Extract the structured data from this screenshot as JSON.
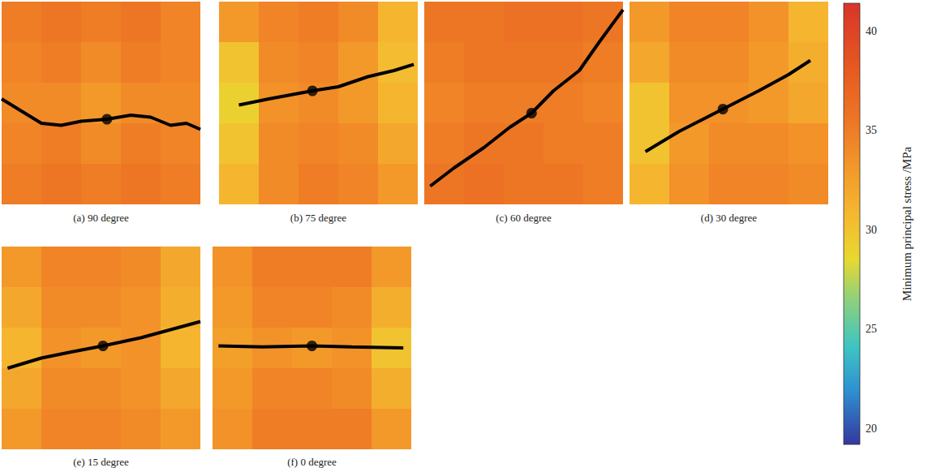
{
  "chart_data": {
    "type": "heatmap",
    "xlim": [
      0,
      10
    ],
    "ylim": [
      0,
      10
    ],
    "tick_labels": false,
    "panels": [
      {
        "title": "(a) 90 degree",
        "field": [
          [
            35,
            35.5,
            35,
            35.5,
            34.5
          ],
          [
            34.5,
            35,
            34,
            35,
            34.5
          ],
          [
            34,
            34,
            33,
            34,
            34
          ],
          [
            34.5,
            35,
            34,
            35,
            34.5
          ],
          [
            35,
            35.5,
            35,
            35.5,
            35
          ]
        ],
        "crack": [
          [
            0,
            5.2
          ],
          [
            1,
            4.6
          ],
          [
            2,
            4.0
          ],
          [
            3,
            3.9
          ],
          [
            4,
            4.1
          ],
          [
            5.3,
            4.2
          ],
          [
            6.5,
            4.4
          ],
          [
            7.5,
            4.3
          ],
          [
            8.5,
            3.9
          ],
          [
            9.3,
            4.0
          ],
          [
            10,
            3.7
          ]
        ],
        "borehole": [
          5.3,
          4.2
        ]
      },
      {
        "title": "(b) 75 degree",
        "field": [
          [
            33,
            34.5,
            35,
            34,
            31
          ],
          [
            30,
            34,
            34.5,
            33,
            30.5
          ],
          [
            29,
            33.5,
            34,
            33,
            31
          ],
          [
            30,
            34,
            34.5,
            34,
            32
          ],
          [
            31,
            34,
            35,
            34.5,
            33
          ]
        ],
        "crack": [
          [
            1.0,
            4.9
          ],
          [
            2.5,
            5.2
          ],
          [
            4.7,
            5.6
          ],
          [
            6,
            5.8
          ],
          [
            7.5,
            6.3
          ],
          [
            8.8,
            6.6
          ],
          [
            9.8,
            6.9
          ]
        ],
        "borehole": [
          4.7,
          5.6
        ]
      },
      {
        "title": "(c) 60 degree",
        "field": [
          [
            35.5,
            35.5,
            36,
            36,
            35.5
          ],
          [
            35,
            35.5,
            35.5,
            35.5,
            35
          ],
          [
            34.5,
            35,
            35,
            35,
            34.5
          ],
          [
            35,
            35.5,
            35.5,
            35,
            35
          ],
          [
            35.5,
            36,
            35.5,
            35.5,
            35
          ]
        ],
        "crack": [
          [
            0.3,
            0.9
          ],
          [
            1.5,
            1.8
          ],
          [
            3,
            2.8
          ],
          [
            4.3,
            3.8
          ],
          [
            5.4,
            4.5
          ],
          [
            6.5,
            5.6
          ],
          [
            7.8,
            6.6
          ],
          [
            8.8,
            8
          ],
          [
            10,
            9.6
          ]
        ],
        "borehole": [
          5.4,
          4.5
        ]
      },
      {
        "title": "(d) 30 degree",
        "field": [
          [
            33,
            34.5,
            34.5,
            33.5,
            31
          ],
          [
            32,
            34,
            34,
            33,
            31.5
          ],
          [
            30,
            33.5,
            33.5,
            33,
            32
          ],
          [
            30,
            33,
            34,
            34,
            33.5
          ],
          [
            31,
            33.5,
            34.5,
            34.5,
            34
          ]
        ],
        "crack": [
          [
            0.8,
            2.6
          ],
          [
            2.5,
            3.6
          ],
          [
            4.7,
            4.7
          ],
          [
            6.5,
            5.6
          ],
          [
            8,
            6.4
          ],
          [
            9.1,
            7.1
          ]
        ],
        "borehole": [
          4.7,
          4.7
        ]
      },
      {
        "title": "(e) 15 degree",
        "field": [
          [
            33,
            34.5,
            34.5,
            34,
            32
          ],
          [
            32,
            34,
            34,
            33.5,
            31.5
          ],
          [
            31,
            33.5,
            33,
            33.5,
            31
          ],
          [
            32,
            34,
            34,
            33.5,
            32
          ],
          [
            33,
            34.5,
            34.5,
            34,
            33
          ]
        ],
        "crack": [
          [
            0.3,
            4.0
          ],
          [
            2,
            4.5
          ],
          [
            3.5,
            4.8
          ],
          [
            5.1,
            5.1
          ],
          [
            7,
            5.5
          ],
          [
            8.5,
            5.9
          ],
          [
            10,
            6.3
          ]
        ],
        "borehole": [
          5.1,
          5.1
        ]
      },
      {
        "title": "(f) 0 degree",
        "field": [
          [
            33.5,
            35,
            35,
            35,
            33
          ],
          [
            33,
            34.5,
            34.5,
            34,
            31.5
          ],
          [
            32.5,
            33.5,
            33,
            33.5,
            30
          ],
          [
            33,
            34.5,
            34.5,
            34,
            31.5
          ],
          [
            33.5,
            35,
            35,
            35,
            33
          ]
        ],
        "crack": [
          [
            0.3,
            5.1
          ],
          [
            2.5,
            5.05
          ],
          [
            5,
            5.1
          ],
          [
            7,
            5.05
          ],
          [
            9.6,
            5.0
          ]
        ],
        "borehole": [
          5.0,
          5.1
        ]
      }
    ],
    "colorbar": {
      "label": "Minimum principal stress /MPa",
      "range": [
        19.2,
        41.4
      ],
      "ticks": [
        20,
        25,
        30,
        35,
        40
      ]
    }
  }
}
